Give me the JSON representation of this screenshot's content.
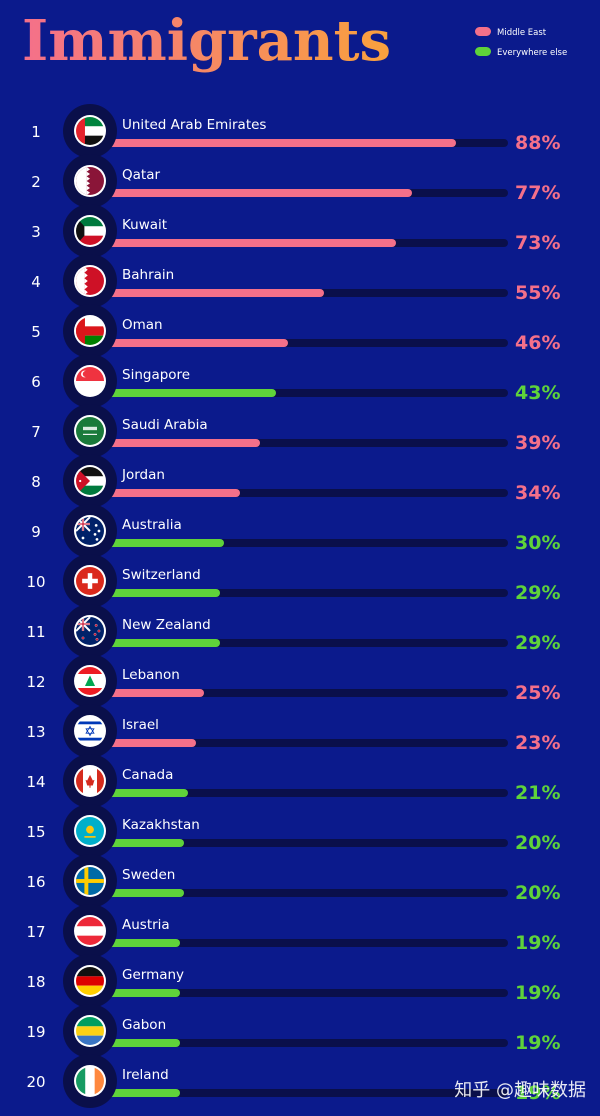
{
  "chart_data": {
    "type": "bar",
    "title": "Immigrants",
    "legend": [
      {
        "name": "Middle East",
        "color": "#f4708a"
      },
      {
        "name": "Everywhere else",
        "color": "#5fd33a"
      }
    ],
    "xlim": [
      0,
      100
    ],
    "items": [
      {
        "rank": "1",
        "country": "United Arab Emirates",
        "value": 88,
        "label": "88%",
        "group": "Middle East",
        "flag": "uae-flag"
      },
      {
        "rank": "2",
        "country": "Qatar",
        "value": 77,
        "label": "77%",
        "group": "Middle East",
        "flag": "qatar-flag"
      },
      {
        "rank": "3",
        "country": "Kuwait",
        "value": 73,
        "label": "73%",
        "group": "Middle East",
        "flag": "kuwait-flag"
      },
      {
        "rank": "4",
        "country": "Bahrain",
        "value": 55,
        "label": "55%",
        "group": "Middle East",
        "flag": "bahrain-flag"
      },
      {
        "rank": "5",
        "country": "Oman",
        "value": 46,
        "label": "46%",
        "group": "Middle East",
        "flag": "oman-flag"
      },
      {
        "rank": "6",
        "country": "Singapore",
        "value": 43,
        "label": "43%",
        "group": "Everywhere else",
        "flag": "singapore-flag"
      },
      {
        "rank": "7",
        "country": "Saudi Arabia",
        "value": 39,
        "label": "39%",
        "group": "Middle East",
        "flag": "saudi-arabia-flag"
      },
      {
        "rank": "8",
        "country": "Jordan",
        "value": 34,
        "label": "34%",
        "group": "Middle East",
        "flag": "jordan-flag"
      },
      {
        "rank": "9",
        "country": "Australia",
        "value": 30,
        "label": "30%",
        "group": "Everywhere else",
        "flag": "australia-flag"
      },
      {
        "rank": "10",
        "country": "Switzerland",
        "value": 29,
        "label": "29%",
        "group": "Everywhere else",
        "flag": "switzerland-flag"
      },
      {
        "rank": "11",
        "country": "New Zealand",
        "value": 29,
        "label": "29%",
        "group": "Everywhere else",
        "flag": "new-zealand-flag"
      },
      {
        "rank": "12",
        "country": "Lebanon",
        "value": 25,
        "label": "25%",
        "group": "Middle East",
        "flag": "lebanon-flag"
      },
      {
        "rank": "13",
        "country": "Israel",
        "value": 23,
        "label": "23%",
        "group": "Middle East",
        "flag": "israel-flag"
      },
      {
        "rank": "14",
        "country": "Canada",
        "value": 21,
        "label": "21%",
        "group": "Everywhere else",
        "flag": "canada-flag"
      },
      {
        "rank": "15",
        "country": "Kazakhstan",
        "value": 20,
        "label": "20%",
        "group": "Everywhere else",
        "flag": "kazakhstan-flag"
      },
      {
        "rank": "16",
        "country": "Sweden",
        "value": 20,
        "label": "20%",
        "group": "Everywhere else",
        "flag": "sweden-flag"
      },
      {
        "rank": "17",
        "country": "Austria",
        "value": 19,
        "label": "19%",
        "group": "Everywhere else",
        "flag": "austria-flag"
      },
      {
        "rank": "18",
        "country": "Germany",
        "value": 19,
        "label": "19%",
        "group": "Everywhere else",
        "flag": "germany-flag"
      },
      {
        "rank": "19",
        "country": "Gabon",
        "value": 19,
        "label": "19%",
        "group": "Everywhere else",
        "flag": "gabon-flag"
      },
      {
        "rank": "20",
        "country": "Ireland",
        "value": 19,
        "label": "19%",
        "group": "Everywhere else",
        "flag": "ireland-flag"
      }
    ]
  },
  "colors": {
    "background": "#0b1a8c",
    "track": "#0a0f4a",
    "title_gradient_start": "#f4708a",
    "title_gradient_end": "#f9a13d",
    "text": "#ffffff"
  },
  "watermark": "知乎 @趣味数据"
}
